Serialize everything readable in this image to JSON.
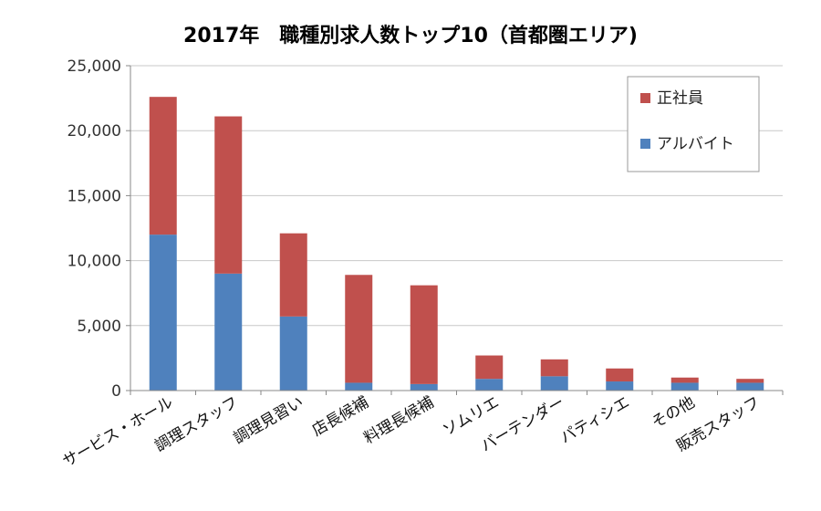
{
  "chart_data": {
    "type": "bar",
    "stacked": true,
    "title": "2017年　職種別求人数トップ10（首都圏エリア)",
    "xlabel": "",
    "ylabel": "",
    "ylim": [
      0,
      25000
    ],
    "yticks": [
      "0",
      "5,000",
      "10,000",
      "15,000",
      "20,000",
      "25,000"
    ],
    "grid": true,
    "legend_position": "top-right",
    "categories": [
      "サービス・ホール",
      "調理スタッフ",
      "調理見習い",
      "店長候補",
      "料理長候補",
      "ソムリエ",
      "バーテンダー",
      "パティシエ",
      "その他",
      "販売スタッフ"
    ],
    "series": [
      {
        "name": "アルバイト",
        "color": "#4f81bd",
        "values": [
          12000,
          9000,
          5700,
          600,
          500,
          900,
          1100,
          700,
          600,
          600
        ]
      },
      {
        "name": "正社員",
        "color": "#c0504d",
        "values": [
          10600,
          12100,
          6400,
          8300,
          7600,
          1800,
          1300,
          1000,
          400,
          300
        ]
      }
    ]
  }
}
